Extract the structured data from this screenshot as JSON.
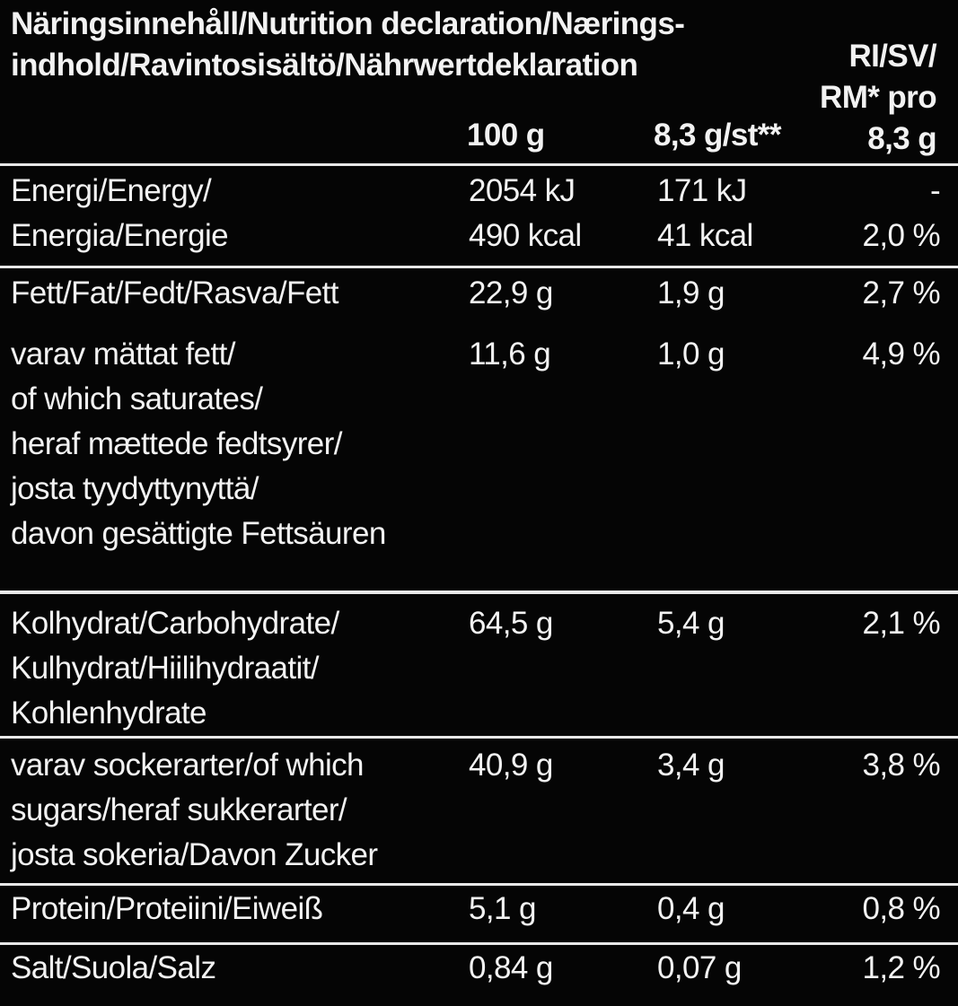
{
  "title": [
    "Näringsinnehåll/Nutrition declaration/Nærings-",
    "indhold/Ravintosisältö/Nährwertdeklaration"
  ],
  "columns": {
    "per100": "100 g",
    "perPiece": "8,3 g/st**",
    "ri": [
      "RI/SV/",
      "RM* pro",
      "8,3 g"
    ]
  },
  "rows": [
    {
      "label": [
        "Energi/Energy/",
        "Energia/Energie"
      ],
      "per100": [
        "2054 kJ",
        "490 kcal"
      ],
      "perPiece": [
        "171 kJ",
        "41 kcal"
      ],
      "ri": [
        "-",
        "2,0 %"
      ]
    },
    {
      "label": [
        "Fett/Fat/Fedt/Rasva/Fett"
      ],
      "per100": [
        "22,9 g"
      ],
      "perPiece": [
        "1,9 g"
      ],
      "ri": [
        "2,7 %"
      ]
    },
    {
      "label": [
        "varav mättat fett/",
        "of which saturates/",
        "heraf mættede fedtsyrer/",
        "josta tyydyttynyttä/",
        "davon gesättigte Fettsäuren"
      ],
      "per100": [
        "11,6 g"
      ],
      "perPiece": [
        "1,0 g"
      ],
      "ri": [
        "4,9 %"
      ]
    },
    {
      "label": [
        "Kolhydrat/Carbohydrate/",
        "Kulhydrat/Hiilihydraatit/",
        "Kohlenhydrate"
      ],
      "per100": [
        "64,5 g"
      ],
      "perPiece": [
        "5,4 g"
      ],
      "ri": [
        "2,1 %"
      ]
    },
    {
      "label": [
        "varav sockerarter/of which",
        "sugars/heraf sukkerarter/",
        "josta sokeria/Davon Zucker"
      ],
      "per100": [
        "40,9 g"
      ],
      "perPiece": [
        "3,4 g"
      ],
      "ri": [
        "3,8 %"
      ]
    },
    {
      "label": [
        "Protein/Proteiini/Eiweiß"
      ],
      "per100": [
        "5,1 g"
      ],
      "perPiece": [
        "0,4 g"
      ],
      "ri": [
        "0,8 %"
      ]
    },
    {
      "label": [
        "Salt/Suola/Salz"
      ],
      "per100": [
        "0,84 g"
      ],
      "perPiece": [
        "0,07 g"
      ],
      "ri": [
        "1,2 %"
      ]
    }
  ]
}
